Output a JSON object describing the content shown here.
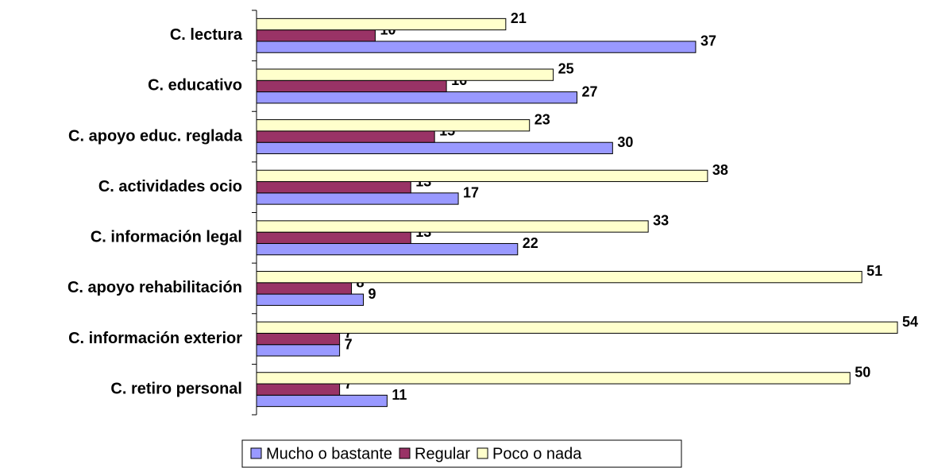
{
  "chart_data": {
    "type": "bar",
    "orientation": "horizontal",
    "categories": [
      "C. lectura",
      "C. educativo",
      "C. apoyo educ. reglada",
      "C. actividades ocio",
      "C. información legal",
      "C. apoyo rehabilitación",
      "C. información exterior",
      "C. retiro personal"
    ],
    "series": [
      {
        "name": "Mucho o bastante",
        "color": "#9999ff",
        "values": [
          37,
          27,
          30,
          17,
          22,
          9,
          7,
          11
        ]
      },
      {
        "name": "Regular",
        "color": "#993366",
        "values": [
          10,
          16,
          15,
          13,
          13,
          8,
          7,
          7
        ]
      },
      {
        "name": "Poco o nada",
        "color": "#ffffcc",
        "values": [
          21,
          25,
          23,
          38,
          33,
          51,
          54,
          50
        ]
      }
    ],
    "xlim": [
      0,
      54
    ],
    "legend": "bottom"
  }
}
